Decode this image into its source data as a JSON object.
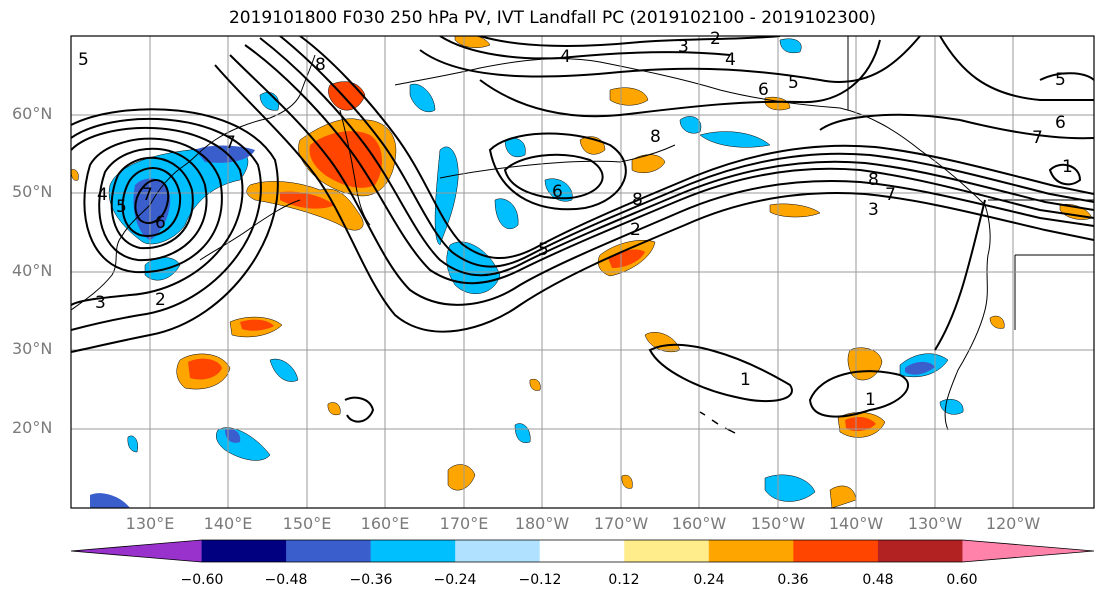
{
  "title": "2019101800 F030 250 hPa PV, IVT Landfall PC (2019102100 - 2019102300)",
  "latitude_labels": [
    "60°N",
    "50°N",
    "40°N",
    "30°N",
    "20°N"
  ],
  "longitude_labels": [
    "130°E",
    "140°E",
    "150°E",
    "160°E",
    "170°E",
    "180°W",
    "170°W",
    "160°W",
    "150°W",
    "140°W",
    "130°W",
    "120°W"
  ],
  "contour_labels": [
    "5",
    "8",
    "4",
    "3",
    "2",
    "4",
    "6",
    "5",
    "8",
    "7",
    "6",
    "8",
    "6",
    "7",
    "1",
    "4",
    "5",
    "7",
    "6",
    "5",
    "3",
    "2",
    "5",
    "2",
    "3",
    "8",
    "7",
    "1",
    "1"
  ],
  "colorbar": {
    "tick_labels": [
      "−0.60",
      "−0.48",
      "−0.36",
      "−0.24",
      "−0.12",
      "0.12",
      "0.24",
      "0.36",
      "0.48",
      "0.60"
    ],
    "colors": [
      "#9932CC",
      "#000080",
      "#3A5FCD",
      "#00BFFF",
      "#B0E2FF",
      "#FFFFFF",
      "#FFEC8B",
      "#FFA500",
      "#FF4500",
      "#B22222",
      "#FF82AB"
    ]
  },
  "colors": {
    "contour": "#000000",
    "grid": "#9a9a9a",
    "tick_text": "#7a7a7a"
  }
}
